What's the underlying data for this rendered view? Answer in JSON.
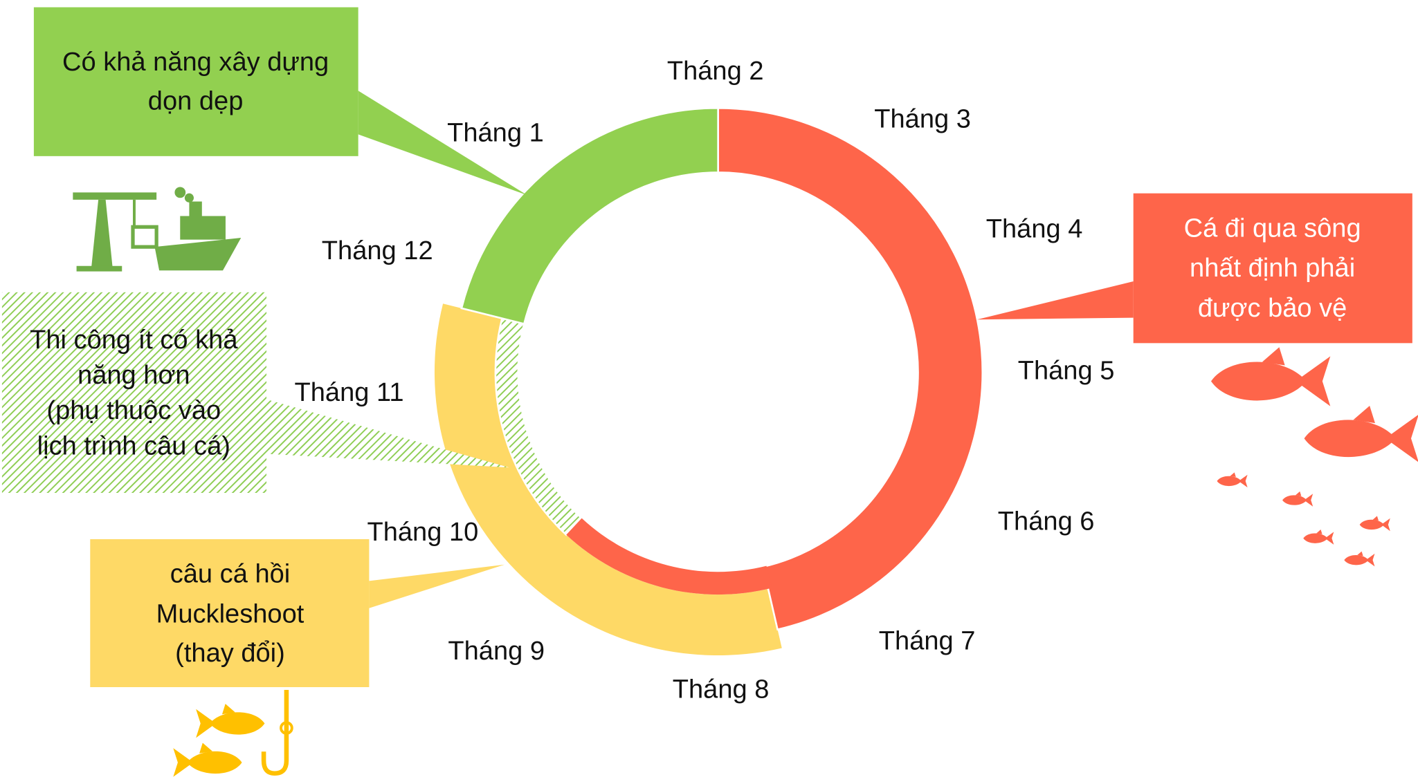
{
  "months": [
    "Tháng 1",
    "Tháng 2",
    "Tháng 3",
    "Tháng 4",
    "Tháng 5",
    "Tháng 6",
    "Tháng 7",
    "Tháng 8",
    "Tháng 9",
    "Tháng 10",
    "Tháng 11",
    "Tháng 12"
  ],
  "callouts": {
    "construction": [
      "Có khả năng xây dựng",
      "dọn dẹp"
    ],
    "fish_protection": [
      "Cá đi qua sông",
      "nhất định phải",
      "được bảo vệ"
    ],
    "limited_construction": [
      "Thi công ít có khả",
      "năng hơn",
      "(phụ thuộc vào",
      "lịch trình câu cá)"
    ],
    "fishing": [
      "câu cá hồi",
      "Muckleshoot",
      "(thay đổi)"
    ]
  }
}
